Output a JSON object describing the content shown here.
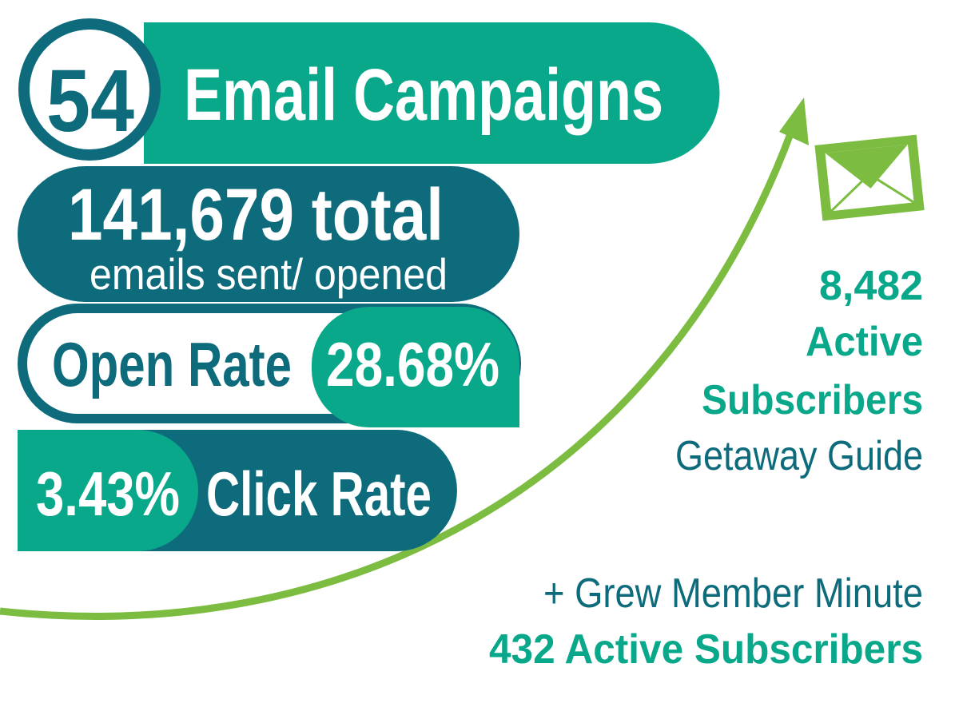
{
  "header": {
    "count": "54",
    "title": "Email Campaigns"
  },
  "stats": {
    "total_value": "141,679 total",
    "total_label": "emails sent/ opened",
    "open_rate_label": "Open Rate",
    "open_rate_value": "28.68%",
    "click_rate_value": "3.43%",
    "click_rate_label": "Click Rate"
  },
  "side": {
    "subscribers_count": "8,482",
    "subscribers_word1": "Active",
    "subscribers_word2": "Subscribers",
    "list_name": "Getaway Guide",
    "growth_note": "+ Grew Member Minute",
    "growth_count": "432 Active Subscribers"
  }
}
